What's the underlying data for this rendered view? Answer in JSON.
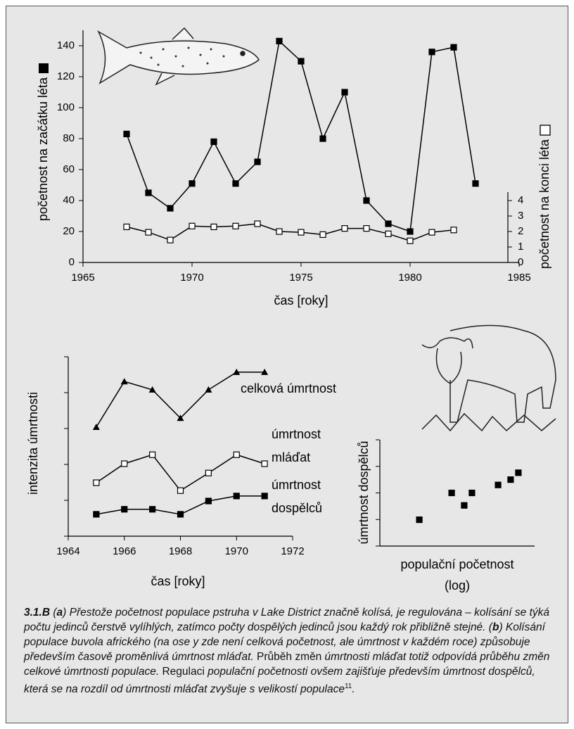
{
  "chart_data": [
    {
      "type": "line",
      "xlabel": "čas [roky]",
      "ylabel": "početnost na začátku léta",
      "y2label": "početnost na konci léta",
      "x": [
        1967,
        1968,
        1969,
        1970,
        1971,
        1972,
        1973,
        1974,
        1975,
        1976,
        1977,
        1978,
        1979,
        1980,
        1981,
        1982,
        1983
      ],
      "series": [
        {
          "name": "početnost na začátku léta",
          "color": "#000000",
          "marker": "square-filled",
          "values": [
            83,
            45,
            35,
            51,
            78,
            51,
            65,
            143,
            130,
            80,
            110,
            40,
            25,
            20,
            136,
            139,
            51
          ]
        },
        {
          "name": "početnost na konci léta",
          "color": "#000000",
          "marker": "square-open",
          "axis": "y2",
          "values": [
            2.3,
            1.95,
            1.45,
            2.35,
            2.3,
            2.35,
            2.5,
            2.0,
            1.95,
            1.8,
            2.2,
            2.2,
            1.85,
            1.4,
            1.95,
            2.1,
            null
          ]
        }
      ],
      "xlim": [
        1965,
        1985
      ],
      "xticks": [
        1965,
        1970,
        1975,
        1980,
        1985
      ],
      "ylim": [
        0,
        150
      ],
      "yticks": [
        0,
        20,
        40,
        60,
        80,
        100,
        120,
        140
      ],
      "y2lim": [
        0,
        15
      ],
      "y2ticks": [
        0,
        1,
        2,
        3,
        4
      ]
    },
    {
      "type": "line",
      "xlabel": "čas [roky]",
      "ylabel": "intenzita úmrtnosti",
      "x": [
        1965,
        1966,
        1967,
        1968,
        1969,
        1970,
        1971
      ],
      "series": [
        {
          "name": "celková úmrtnost",
          "color": "#000000",
          "marker": "triangle-filled",
          "values": [
            3.04,
            4.31,
            4.08,
            3.29,
            4.08,
            4.57,
            4.57
          ]
        },
        {
          "name": "úmrtnost mláďat",
          "color": "#000000",
          "marker": "square-open",
          "values": [
            1.49,
            2.02,
            2.27,
            1.27,
            1.76,
            2.27,
            2.02
          ]
        },
        {
          "name": "úmrtnost dospělců",
          "color": "#000000",
          "marker": "square-filled",
          "values": [
            0.61,
            0.75,
            0.75,
            0.61,
            0.98,
            1.12,
            1.12
          ]
        }
      ],
      "xlim": [
        1964,
        1972
      ],
      "xticks": [
        1964,
        1966,
        1968,
        1970,
        1972
      ],
      "ylim": [
        0,
        5
      ],
      "yticks": [
        0,
        1,
        2,
        3,
        4,
        5
      ],
      "ytick_labels": false
    },
    {
      "type": "scatter",
      "xlabel": "populační početnost (log)",
      "ylabel": "úmrtnost dospělců",
      "x": [
        2.55,
        4.64,
        5.45,
        5.95,
        7.64,
        8.45,
        8.95
      ],
      "values": [
        0.99,
        2.0,
        1.53,
        2.0,
        2.3,
        2.5,
        2.76
      ],
      "color": "#000000",
      "marker": "square-filled",
      "xlim": [
        0,
        10
      ],
      "ylim": [
        0,
        4
      ],
      "yticks": [
        0,
        1,
        2,
        3,
        4
      ],
      "ytick_labels": false
    }
  ],
  "caption": [
    "3.1.B",
    " (",
    "a",
    ") Přestože početnost populace pstruha v Lake District značně kolísá, je regulována – kolísání se týká počtu jedinců čerstvě vylíhlých, zatímco počty dospělých jedinců jsou každý rok přibližně stejné. (",
    "b",
    ") Kolísání populace buvola afrického (na ose y zde není celková početnost, ale úmrtnost v každém roce) způsobuje především časově proměnlivá úmrtnost mláďat.",
    " Průběh změn ",
    "úmrtnosti mláďat totiž odpovídá průběhu změn celkové úmrtnosti populace.",
    " Regulaci ",
    "populační početnosti ovšem zajišťuje především úmrtnost dospělců, která se na rozdíl od úmrtnosti mláďat zvyšuje s velikostí populace",
    "11",
    "."
  ]
}
